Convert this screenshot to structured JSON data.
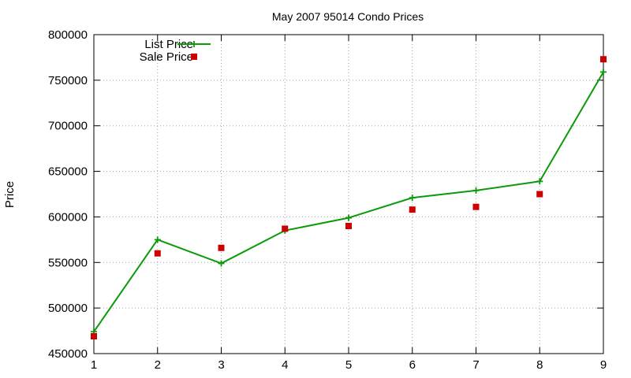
{
  "chart_data": {
    "type": "line",
    "title": "May 2007 95014 Condo Prices",
    "xlabel": "",
    "ylabel": "Price",
    "x": [
      1,
      2,
      3,
      4,
      5,
      6,
      7,
      8,
      9
    ],
    "xlim": [
      1,
      9
    ],
    "ylim": [
      450000,
      800000
    ],
    "xticks": [
      "1",
      "2",
      "3",
      "4",
      "5",
      "6",
      "7",
      "8",
      "9"
    ],
    "yticks": [
      "450000",
      "500000",
      "550000",
      "600000",
      "650000",
      "700000",
      "750000",
      "800000"
    ],
    "grid": true,
    "legend_position": "top-left",
    "series": [
      {
        "name": "List Price",
        "kind": "line-points",
        "color": "#0a9a0a",
        "marker": "plus",
        "values": [
          474000,
          575000,
          549000,
          585000,
          599000,
          621000,
          629000,
          639000,
          759000
        ]
      },
      {
        "name": "Sale Price",
        "kind": "points",
        "color": "#cc0000",
        "marker": "square",
        "values": [
          469000,
          560000,
          566000,
          587000,
          590000,
          608000,
          611000,
          625000,
          773000
        ]
      }
    ]
  }
}
